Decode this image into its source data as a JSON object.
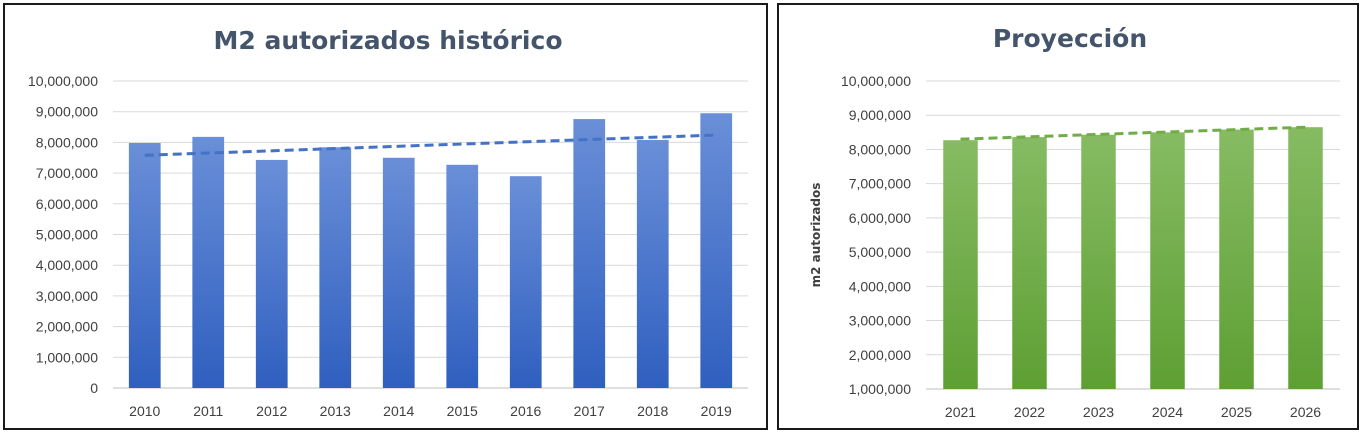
{
  "chart_data": [
    {
      "type": "bar",
      "title": "M2 autorizados histórico",
      "xlabel": "",
      "ylabel": "",
      "categories": [
        "2010",
        "2011",
        "2012",
        "2013",
        "2014",
        "2015",
        "2016",
        "2017",
        "2018",
        "2019"
      ],
      "values": [
        7980000,
        8180000,
        7430000,
        7840000,
        7500000,
        7270000,
        6900000,
        8760000,
        8080000,
        8950000
      ],
      "trendline": {
        "style": "dashed",
        "start": 7580000,
        "end": 8240000
      },
      "ylim": [
        0,
        10000000
      ],
      "yticks": [
        "0",
        "1,000,000",
        "2,000,000",
        "3,000,000",
        "4,000,000",
        "5,000,000",
        "6,000,000",
        "7,000,000",
        "8,000,000",
        "9,000,000",
        "10,000,000"
      ],
      "grid": true,
      "colors": {
        "bar_top": "#6a8fd8",
        "bar_bottom": "#2f5fbf",
        "trend": "#4472c4"
      }
    },
    {
      "type": "bar",
      "title": "Proyección",
      "xlabel": "",
      "ylabel": "m2 autorizados",
      "categories": [
        "2021",
        "2022",
        "2023",
        "2024",
        "2025",
        "2026"
      ],
      "values": [
        8270000,
        8360000,
        8430000,
        8500000,
        8580000,
        8650000
      ],
      "trendline": {
        "style": "dashed",
        "start": 8300000,
        "end": 8650000
      },
      "ylim": [
        1000000,
        10000000
      ],
      "yticks": [
        "1,000,000",
        "2,000,000",
        "3,000,000",
        "4,000,000",
        "5,000,000",
        "6,000,000",
        "7,000,000",
        "8,000,000",
        "9,000,000",
        "10,000,000"
      ],
      "grid": true,
      "colors": {
        "bar_top": "#86bb63",
        "bar_bottom": "#5e9f33",
        "trend": "#70ad47"
      }
    }
  ]
}
